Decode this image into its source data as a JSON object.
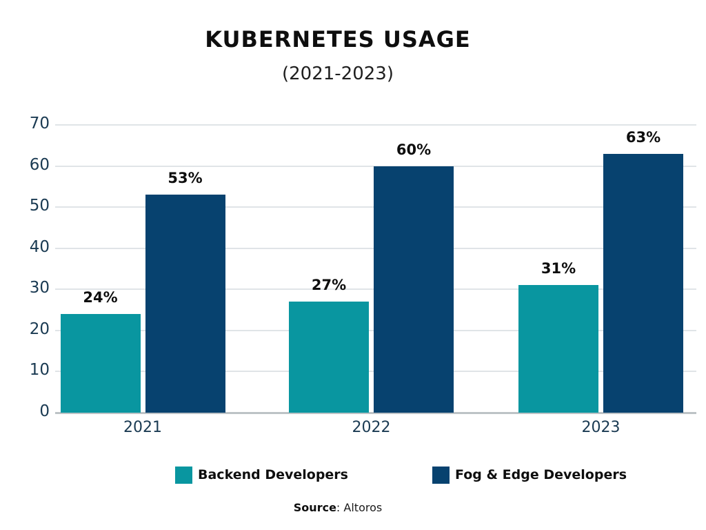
{
  "header": {
    "title": "KUBERNETES USAGE",
    "subtitle": "(2021-2023)"
  },
  "chart_data": {
    "type": "bar",
    "title": "KUBERNETES USAGE",
    "subtitle": "(2021-2023)",
    "categories": [
      "2021",
      "2022",
      "2023"
    ],
    "series": [
      {
        "name": "Backend Developers",
        "color": "#0996A0",
        "values": [
          24,
          27,
          31
        ]
      },
      {
        "name": "Fog & Edge Developers",
        "color": "#07426F",
        "values": [
          53,
          60,
          63
        ]
      }
    ],
    "value_label_suffix": "%",
    "ylim": [
      0,
      70
    ],
    "yticks": [
      0,
      10,
      20,
      30,
      40,
      50,
      60,
      70
    ],
    "grid": "horizontal",
    "legend_position": "bottom"
  },
  "source": {
    "bold": "Source",
    "rest": ": Altoros"
  },
  "colors": {
    "background": "#ffffff",
    "gridline": "#e0e4e7",
    "axis_line": "#bdc3c6",
    "axis_text": "#1a3a52",
    "label_text": "#0e0e0e"
  }
}
